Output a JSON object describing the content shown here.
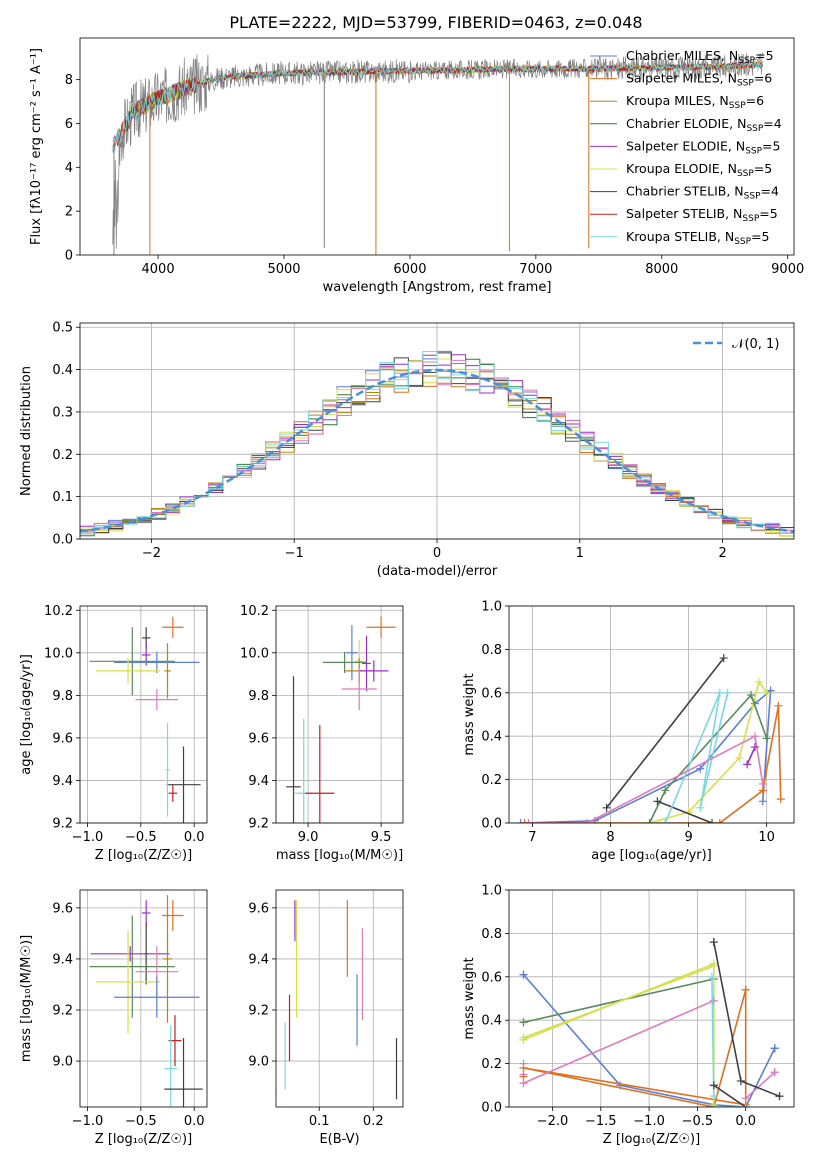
{
  "figure_title": "PLATE=2222, MJD=53799, FIBERID=0463, z=0.048",
  "colors": {
    "Chabrier MILES": "#5b7fd8",
    "Salpeter MILES": "#e07020",
    "Kroupa MILES": "#b8860b",
    "Chabrier ELODIE": "#2e7d32",
    "Salpeter ELODIE": "#9a30c8",
    "Kroupa ELODIE": "#d4e04a",
    "Chabrier STELIB": "#404040",
    "Salpeter STELIB": "#c41e1e",
    "Kroupa STELIB": "#7ad8e0",
    "data": "#808080",
    "pink": "#e07ab8",
    "sage": "#5a8a5a"
  },
  "chart_data": [
    {
      "id": "spectrum",
      "type": "line",
      "title": "PLATE=2222, MJD=53799, FIBERID=0463, z=0.048",
      "xlabel": "wavelength [Angstrom, rest frame]",
      "ylabel": "Flux [fλ10⁻¹⁷ erg cm⁻² s⁻¹ A⁻¹]",
      "xlim": [
        3380,
        9050
      ],
      "ylim": [
        0,
        9.9
      ],
      "xticks": [
        4000,
        5000,
        6000,
        7000,
        8000,
        9000
      ],
      "yticks": [
        0,
        2,
        4,
        6,
        8
      ],
      "grid": false,
      "legend_position": "right",
      "legend": [
        {
          "label": "Chabrier MILES, N",
          "sub": "SSP",
          "suffix": "=5",
          "color_key": "Chabrier MILES"
        },
        {
          "label": "Salpeter MILES, N",
          "sub": "SSP",
          "suffix": "=6",
          "color_key": "Salpeter MILES"
        },
        {
          "label": "Kroupa MILES, N",
          "sub": "SSP",
          "suffix": "=6",
          "color_key": "Kroupa MILES"
        },
        {
          "label": "Chabrier ELODIE, N",
          "sub": "SSP",
          "suffix": "=4",
          "color_key": "Chabrier ELODIE"
        },
        {
          "label": "Salpeter ELODIE, N",
          "sub": "SSP",
          "suffix": "=5",
          "color_key": "Salpeter ELODIE"
        },
        {
          "label": "Kroupa ELODIE, N",
          "sub": "SSP",
          "suffix": "=5",
          "color_key": "Kroupa ELODIE"
        },
        {
          "label": "Chabrier STELIB, N",
          "sub": "SSP",
          "suffix": "=4",
          "color_key": "Chabrier STELIB"
        },
        {
          "label": "Salpeter STELIB, N",
          "sub": "SSP",
          "suffix": "=5",
          "color_key": "Salpeter STELIB"
        },
        {
          "label": "Kroupa STELIB, N",
          "sub": "SSP",
          "suffix": "=5",
          "color_key": "Kroupa STELIB"
        }
      ],
      "continuum": [
        [
          3640,
          5.0
        ],
        [
          3700,
          5.5
        ],
        [
          3800,
          6.5
        ],
        [
          3950,
          7.0
        ],
        [
          4200,
          7.6
        ],
        [
          4500,
          8.1
        ],
        [
          5000,
          8.3
        ],
        [
          5500,
          8.35
        ],
        [
          6000,
          8.4
        ],
        [
          6500,
          8.45
        ],
        [
          7000,
          8.5
        ],
        [
          7500,
          8.5
        ],
        [
          8000,
          8.55
        ],
        [
          8500,
          8.6
        ],
        [
          8800,
          8.7
        ]
      ],
      "absorption_lines": [
        {
          "x": 3650,
          "depth": 8.5
        },
        {
          "x": 3935,
          "depth": 7.2
        },
        {
          "x": 5320,
          "depth": 8.0
        },
        {
          "x": 5730,
          "depth": 8.5
        },
        {
          "x": 6790,
          "depth": 8.3
        },
        {
          "x": 7420,
          "depth": 8.2
        }
      ]
    },
    {
      "id": "residuals",
      "type": "line",
      "xlabel": "(data-model)/error",
      "ylabel": "Normed distribution",
      "xlim": [
        -2.5,
        2.5
      ],
      "ylim": [
        0,
        0.51
      ],
      "xticks": [
        -2,
        -1,
        0,
        1,
        2
      ],
      "yticks": [
        0.0,
        0.1,
        0.2,
        0.3,
        0.4,
        0.5
      ],
      "grid": true,
      "legend_position": "top-right",
      "legend_label": "𝒩(0, 1)",
      "bin_width": 0.1,
      "series": [
        {
          "color_key": "Chabrier MILES",
          "seed": 1
        },
        {
          "color_key": "Salpeter MILES",
          "seed": 2
        },
        {
          "color_key": "Kroupa MILES",
          "seed": 3
        },
        {
          "color_key": "Chabrier ELODIE",
          "seed": 4
        },
        {
          "color_key": "Salpeter ELODIE",
          "seed": 5
        },
        {
          "color_key": "Kroupa ELODIE",
          "seed": 6
        },
        {
          "color_key": "Chabrier STELIB",
          "seed": 7
        },
        {
          "color_key": "pink",
          "seed": 8
        },
        {
          "color_key": "Kroupa STELIB",
          "seed": 9
        }
      ]
    },
    {
      "id": "age-vs-Z",
      "type": "scatter",
      "xlabel": "Z [log₁₀(Z/Z☉)]",
      "ylabel": "age  [log₁₀(age/yr)]",
      "xlim": [
        -1.07,
        0.12
      ],
      "ylim": [
        9.2,
        10.22
      ],
      "xticks": [
        -1.0,
        -0.5,
        0.0
      ],
      "yticks": [
        9.2,
        9.4,
        9.6,
        9.8,
        10.0,
        10.2
      ],
      "grid": true,
      "points": [
        {
          "color_key": "Salpeter MILES",
          "x": -0.2,
          "xerr": 0.1,
          "y": 10.12,
          "yerr": 0.05
        },
        {
          "color_key": "Chabrier STELIB",
          "x": -0.45,
          "xerr": 0.04,
          "y": 10.07,
          "yerr": 0.05
        },
        {
          "color_key": "Salpeter ELODIE",
          "x": -0.45,
          "xerr": 0.04,
          "y": 9.99,
          "yerr": 0.05
        },
        {
          "color_key": "sage",
          "x": -0.58,
          "xerr": 0.4,
          "y": 9.96,
          "yerr": 0.16
        },
        {
          "color_key": "Chabrier MILES",
          "x": -0.35,
          "xerr": 0.4,
          "y": 9.955,
          "yerr": 0.05
        },
        {
          "color_key": "Kroupa ELODIE",
          "x": -0.62,
          "xerr": 0.3,
          "y": 9.915,
          "yerr": 0.06
        },
        {
          "color_key": "Kroupa MILES",
          "x": -0.25,
          "xerr": 0.03,
          "y": 9.915,
          "yerr": 0.13
        },
        {
          "color_key": "pink",
          "x": -0.35,
          "xerr": 0.2,
          "y": 9.78,
          "yerr": 0.05
        },
        {
          "color_key": "Chabrier STELIB",
          "x": -0.1,
          "xerr": 0.16,
          "y": 9.38,
          "yerr": 0.18
        },
        {
          "color_key": "Salpeter STELIB",
          "x": -0.2,
          "xerr": 0.04,
          "y": 9.34,
          "yerr": 0.04
        },
        {
          "color_key": "Kroupa STELIB",
          "x": -0.25,
          "xerr": 0.02,
          "y": 9.45,
          "yerr": 0.22
        }
      ]
    },
    {
      "id": "age-vs-mass",
      "type": "scatter",
      "xlabel": "mass [log₁₀(M/M☉)]",
      "ylabel": "",
      "xlim": [
        8.78,
        9.65
      ],
      "ylim": [
        9.2,
        10.22
      ],
      "xticks": [
        9.0,
        9.5
      ],
      "yticks": [
        9.2,
        9.4,
        9.6,
        9.8,
        10.0,
        10.2
      ],
      "grid": true,
      "points": [
        {
          "color_key": "Salpeter MILES",
          "x": 9.5,
          "xerr": 0.1,
          "y": 10.12,
          "yerr": 0.05
        },
        {
          "color_key": "Chabrier MILES",
          "x": 9.3,
          "xerr": 0.04,
          "y": 10.0,
          "yerr": 0.13
        },
        {
          "color_key": "Kroupa ELODIE",
          "x": 9.35,
          "xerr": 0.03,
          "y": 9.96,
          "yerr": 0.1
        },
        {
          "color_key": "Salpeter ELODIE",
          "x": 9.4,
          "xerr": 0.03,
          "y": 9.95,
          "yerr": 0.13
        },
        {
          "color_key": "sage",
          "x": 9.25,
          "xerr": 0.15,
          "y": 9.955,
          "yerr": 0.05
        },
        {
          "color_key": "Kroupa MILES",
          "x": 9.35,
          "xerr": 0.1,
          "y": 9.915,
          "yerr": 0.06
        },
        {
          "color_key": "Salpeter ELODIE",
          "x": 9.45,
          "xerr": 0.1,
          "y": 9.915,
          "yerr": 0.05
        },
        {
          "color_key": "pink",
          "x": 9.35,
          "xerr": 0.12,
          "y": 9.83,
          "yerr": 0.1
        },
        {
          "color_key": "Chabrier STELIB",
          "x": 8.9,
          "xerr": 0.05,
          "y": 9.37,
          "yerr": 0.52
        },
        {
          "color_key": "Kroupa STELIB",
          "x": 8.97,
          "xerr": 0.06,
          "y": 9.34,
          "yerr": 0.35
        },
        {
          "color_key": "Salpeter STELIB",
          "x": 9.08,
          "xerr": 0.1,
          "y": 9.34,
          "yerr": 0.32
        }
      ]
    },
    {
      "id": "mass-weight-vs-age",
      "type": "line",
      "xlabel": "age  [log₁₀(age/yr)]",
      "ylabel": "mass weight",
      "xlim": [
        6.7,
        10.35
      ],
      "ylim": [
        0,
        1.0
      ],
      "xticks": [
        7,
        8,
        9,
        10
      ],
      "yticks": [
        0.0,
        0.2,
        0.4,
        0.6,
        0.8,
        1.0
      ],
      "grid": true,
      "series": [
        {
          "color_key": "Chabrier MILES",
          "x": [
            6.85,
            7.8,
            9.15,
            9.85,
            10.05,
            9.95
          ],
          "y": [
            0.0,
            0.01,
            0.25,
            0.55,
            0.61,
            0.1
          ]
        },
        {
          "color_key": "Salpeter MILES",
          "x": [
            6.9,
            7.7,
            9.4,
            9.95,
            10.15,
            10.18
          ],
          "y": [
            0.0,
            0.0,
            0.0,
            0.15,
            0.54,
            0.11
          ]
        },
        {
          "color_key": "Kroupa ELODIE",
          "x": [
            8.5,
            9.0,
            9.65,
            9.9,
            10.0
          ],
          "y": [
            0.0,
            0.05,
            0.3,
            0.65,
            0.6
          ]
        },
        {
          "color_key": "sage",
          "x": [
            8.5,
            8.7,
            9.8,
            10.0
          ],
          "y": [
            0.0,
            0.15,
            0.59,
            0.39
          ]
        },
        {
          "color_key": "Chabrier STELIB",
          "x": [
            7.95,
            9.45
          ],
          "y": [
            0.07,
            0.76
          ]
        },
        {
          "color_key": "Chabrier STELIB",
          "x": [
            8.6,
            9.3
          ],
          "y": [
            0.1,
            0.0
          ]
        },
        {
          "color_key": "Kroupa STELIB",
          "x": [
            8.7,
            9.4,
            9.15,
            9.5
          ],
          "y": [
            0.0,
            0.6,
            0.07,
            0.6
          ]
        },
        {
          "color_key": "pink",
          "x": [
            6.95,
            7.7,
            9.85,
            9.95
          ],
          "y": [
            0.0,
            0.0,
            0.4,
            0.18
          ]
        },
        {
          "color_key": "Salpeter ELODIE",
          "x": [
            9.75,
            9.85
          ],
          "y": [
            0.27,
            0.35
          ]
        }
      ]
    },
    {
      "id": "mass-vs-Z",
      "type": "scatter",
      "xlabel": "Z [log₁₀(Z/Z☉)]",
      "ylabel": "mass [log₁₀(M/M☉)]",
      "xlim": [
        -1.07,
        0.12
      ],
      "ylim": [
        8.82,
        9.67
      ],
      "xticks": [
        -1.0,
        -0.5,
        0.0
      ],
      "yticks": [
        9.0,
        9.2,
        9.4,
        9.6
      ],
      "grid": true,
      "points": [
        {
          "color_key": "Salpeter MILES",
          "x": -0.2,
          "xerr": 0.1,
          "y": 9.57,
          "yerr": 0.06
        },
        {
          "color_key": "Salpeter ELODIE",
          "x": -0.45,
          "xerr": 0.04,
          "y": 9.58,
          "yerr": 0.05
        },
        {
          "color_key": "Chabrier STELIB",
          "x": -0.45,
          "xerr": 0.02,
          "y": 9.42,
          "yerr": 0.12
        },
        {
          "color_key": "Salpeter ELODIE",
          "x": -0.6,
          "xerr": 0.37,
          "y": 9.42,
          "yerr": 0.03
        },
        {
          "color_key": "sage",
          "x": -0.58,
          "xerr": 0.4,
          "y": 9.37,
          "yerr": 0.2
        },
        {
          "color_key": "pink",
          "x": -0.35,
          "xerr": 0.2,
          "y": 9.35,
          "yerr": 0.1
        },
        {
          "color_key": "Kroupa ELODIE",
          "x": -0.62,
          "xerr": 0.3,
          "y": 9.31,
          "yerr": 0.2
        },
        {
          "color_key": "Chabrier MILES",
          "x": -0.35,
          "xerr": 0.4,
          "y": 9.25,
          "yerr": 0.08
        },
        {
          "color_key": "Kroupa MILES",
          "x": -0.25,
          "xerr": 0.04,
          "y": 9.4,
          "yerr": 0.25
        },
        {
          "color_key": "Salpeter STELIB",
          "x": -0.18,
          "xerr": 0.06,
          "y": 9.08,
          "yerr": 0.1
        },
        {
          "color_key": "Kroupa STELIB",
          "x": -0.22,
          "xerr": 0.06,
          "y": 8.97,
          "yerr": 0.17
        },
        {
          "color_key": "Chabrier STELIB",
          "x": -0.1,
          "xerr": 0.18,
          "y": 8.89,
          "yerr": 0.2
        }
      ]
    },
    {
      "id": "mass-vs-EBV",
      "type": "scatter",
      "xlabel": "E(B-V)",
      "ylabel": "",
      "xlim": [
        0.02,
        0.255
      ],
      "ylim": [
        8.82,
        9.67
      ],
      "xticks": [
        0.1,
        0.2
      ],
      "yticks": [
        9.0,
        9.2,
        9.4,
        9.6
      ],
      "grid": true,
      "points": [
        {
          "color_key": "Chabrier STELIB",
          "x": 0.243,
          "y": 8.97,
          "yerr": 0.12
        },
        {
          "color_key": "pink",
          "x": 0.18,
          "y": 9.34,
          "yerr": 0.18
        },
        {
          "color_key": "Salpeter MILES",
          "x": 0.152,
          "y": 9.48,
          "yerr": 0.15
        },
        {
          "color_key": "Chabrier MILES",
          "x": 0.17,
          "y": 9.2,
          "yerr": 0.14
        },
        {
          "color_key": "Salpeter ELODIE",
          "x": 0.055,
          "y": 9.55,
          "yerr": 0.08
        },
        {
          "color_key": "Kroupa ELODIE",
          "x": 0.058,
          "y": 9.4,
          "yerr": 0.23
        },
        {
          "color_key": "Salpeter STELIB",
          "x": 0.045,
          "y": 9.13,
          "yerr": 0.13
        },
        {
          "color_key": "Kroupa STELIB",
          "x": 0.037,
          "y": 9.02,
          "yerr": 0.13
        }
      ]
    },
    {
      "id": "mass-weight-vs-Z",
      "type": "line",
      "xlabel": "Z [log₁₀(Z/Z☉)]",
      "ylabel": "mass weight",
      "xlim": [
        -2.45,
        0.5
      ],
      "ylim": [
        0,
        1.0
      ],
      "xticks": [
        -2.0,
        -1.5,
        -1.0,
        -0.5,
        0.0
      ],
      "yticks": [
        0.0,
        0.2,
        0.4,
        0.6,
        0.8,
        1.0
      ],
      "grid": true,
      "series": [
        {
          "color_key": "Chabrier MILES",
          "x": [
            -2.3,
            -1.3,
            -0.33,
            0.0,
            0.3,
            0.3
          ],
          "y": [
            0.61,
            0.1,
            0.01,
            0.0,
            0.27,
            0.27
          ]
        },
        {
          "color_key": "Salpeter MILES",
          "x": [
            -2.3,
            -0.33,
            0.0,
            0.0,
            -2.3
          ],
          "y": [
            0.18,
            0.0,
            0.54,
            0.01,
            0.18
          ]
        },
        {
          "color_key": "sage",
          "x": [
            -2.3,
            -0.33
          ],
          "y": [
            0.39,
            0.59
          ]
        },
        {
          "color_key": "Kroupa ELODIE",
          "x": [
            -2.3,
            -0.33,
            -0.33
          ],
          "y": [
            0.31,
            0.66,
            0.01
          ]
        },
        {
          "color_key": "Kroupa ELODIE",
          "x": [
            -2.3,
            -0.33
          ],
          "y": [
            0.32,
            0.65
          ]
        },
        {
          "color_key": "pink",
          "x": [
            -2.3,
            -0.33
          ],
          "y": [
            0.11,
            0.49
          ]
        },
        {
          "color_key": "pink",
          "x": [
            0.0,
            0.3
          ],
          "y": [
            0.04,
            0.16
          ]
        },
        {
          "color_key": "Chabrier STELIB",
          "x": [
            -0.33,
            -0.05,
            0.35
          ],
          "y": [
            0.76,
            0.12,
            0.05
          ]
        },
        {
          "color_key": "Chabrier STELIB",
          "x": [
            -0.33,
            0.0
          ],
          "y": [
            0.1,
            0.0
          ]
        },
        {
          "color_key": "Kroupa STELIB",
          "x": [
            -0.35,
            -0.33
          ],
          "y": [
            0.6,
            0.05
          ]
        },
        {
          "color_key": "Kroupa STELIB",
          "x": [
            -0.33,
            0.0
          ],
          "y": [
            0.0,
            0.0
          ]
        }
      ],
      "markers": [
        {
          "color_key": "pink",
          "x": -2.3,
          "y": 0.2
        },
        {
          "color_key": "pink",
          "x": -2.3,
          "y": 0.15
        },
        {
          "color_key": "Salpeter MILES",
          "x": -2.3,
          "y": 0.14
        },
        {
          "color_key": "Salpeter MILES",
          "x": 0.0,
          "y": 0.54
        },
        {
          "color_key": "Chabrier STELIB",
          "x": -0.33,
          "y": 0.76
        },
        {
          "color_key": "Chabrier STELIB",
          "x": 0.35,
          "y": 0.05
        },
        {
          "color_key": "Chabrier MILES",
          "x": -2.3,
          "y": 0.61
        },
        {
          "color_key": "Chabrier MILES",
          "x": 0.3,
          "y": 0.27
        },
        {
          "color_key": "sage",
          "x": -2.3,
          "y": 0.39
        },
        {
          "color_key": "Kroupa ELODIE",
          "x": -2.3,
          "y": 0.31
        },
        {
          "color_key": "pink",
          "x": 0.3,
          "y": 0.16
        },
        {
          "color_key": "pink",
          "x": -2.3,
          "y": 0.11
        },
        {
          "color_key": "Chabrier STELIB",
          "x": -0.33,
          "y": 0.1
        }
      ]
    }
  ]
}
